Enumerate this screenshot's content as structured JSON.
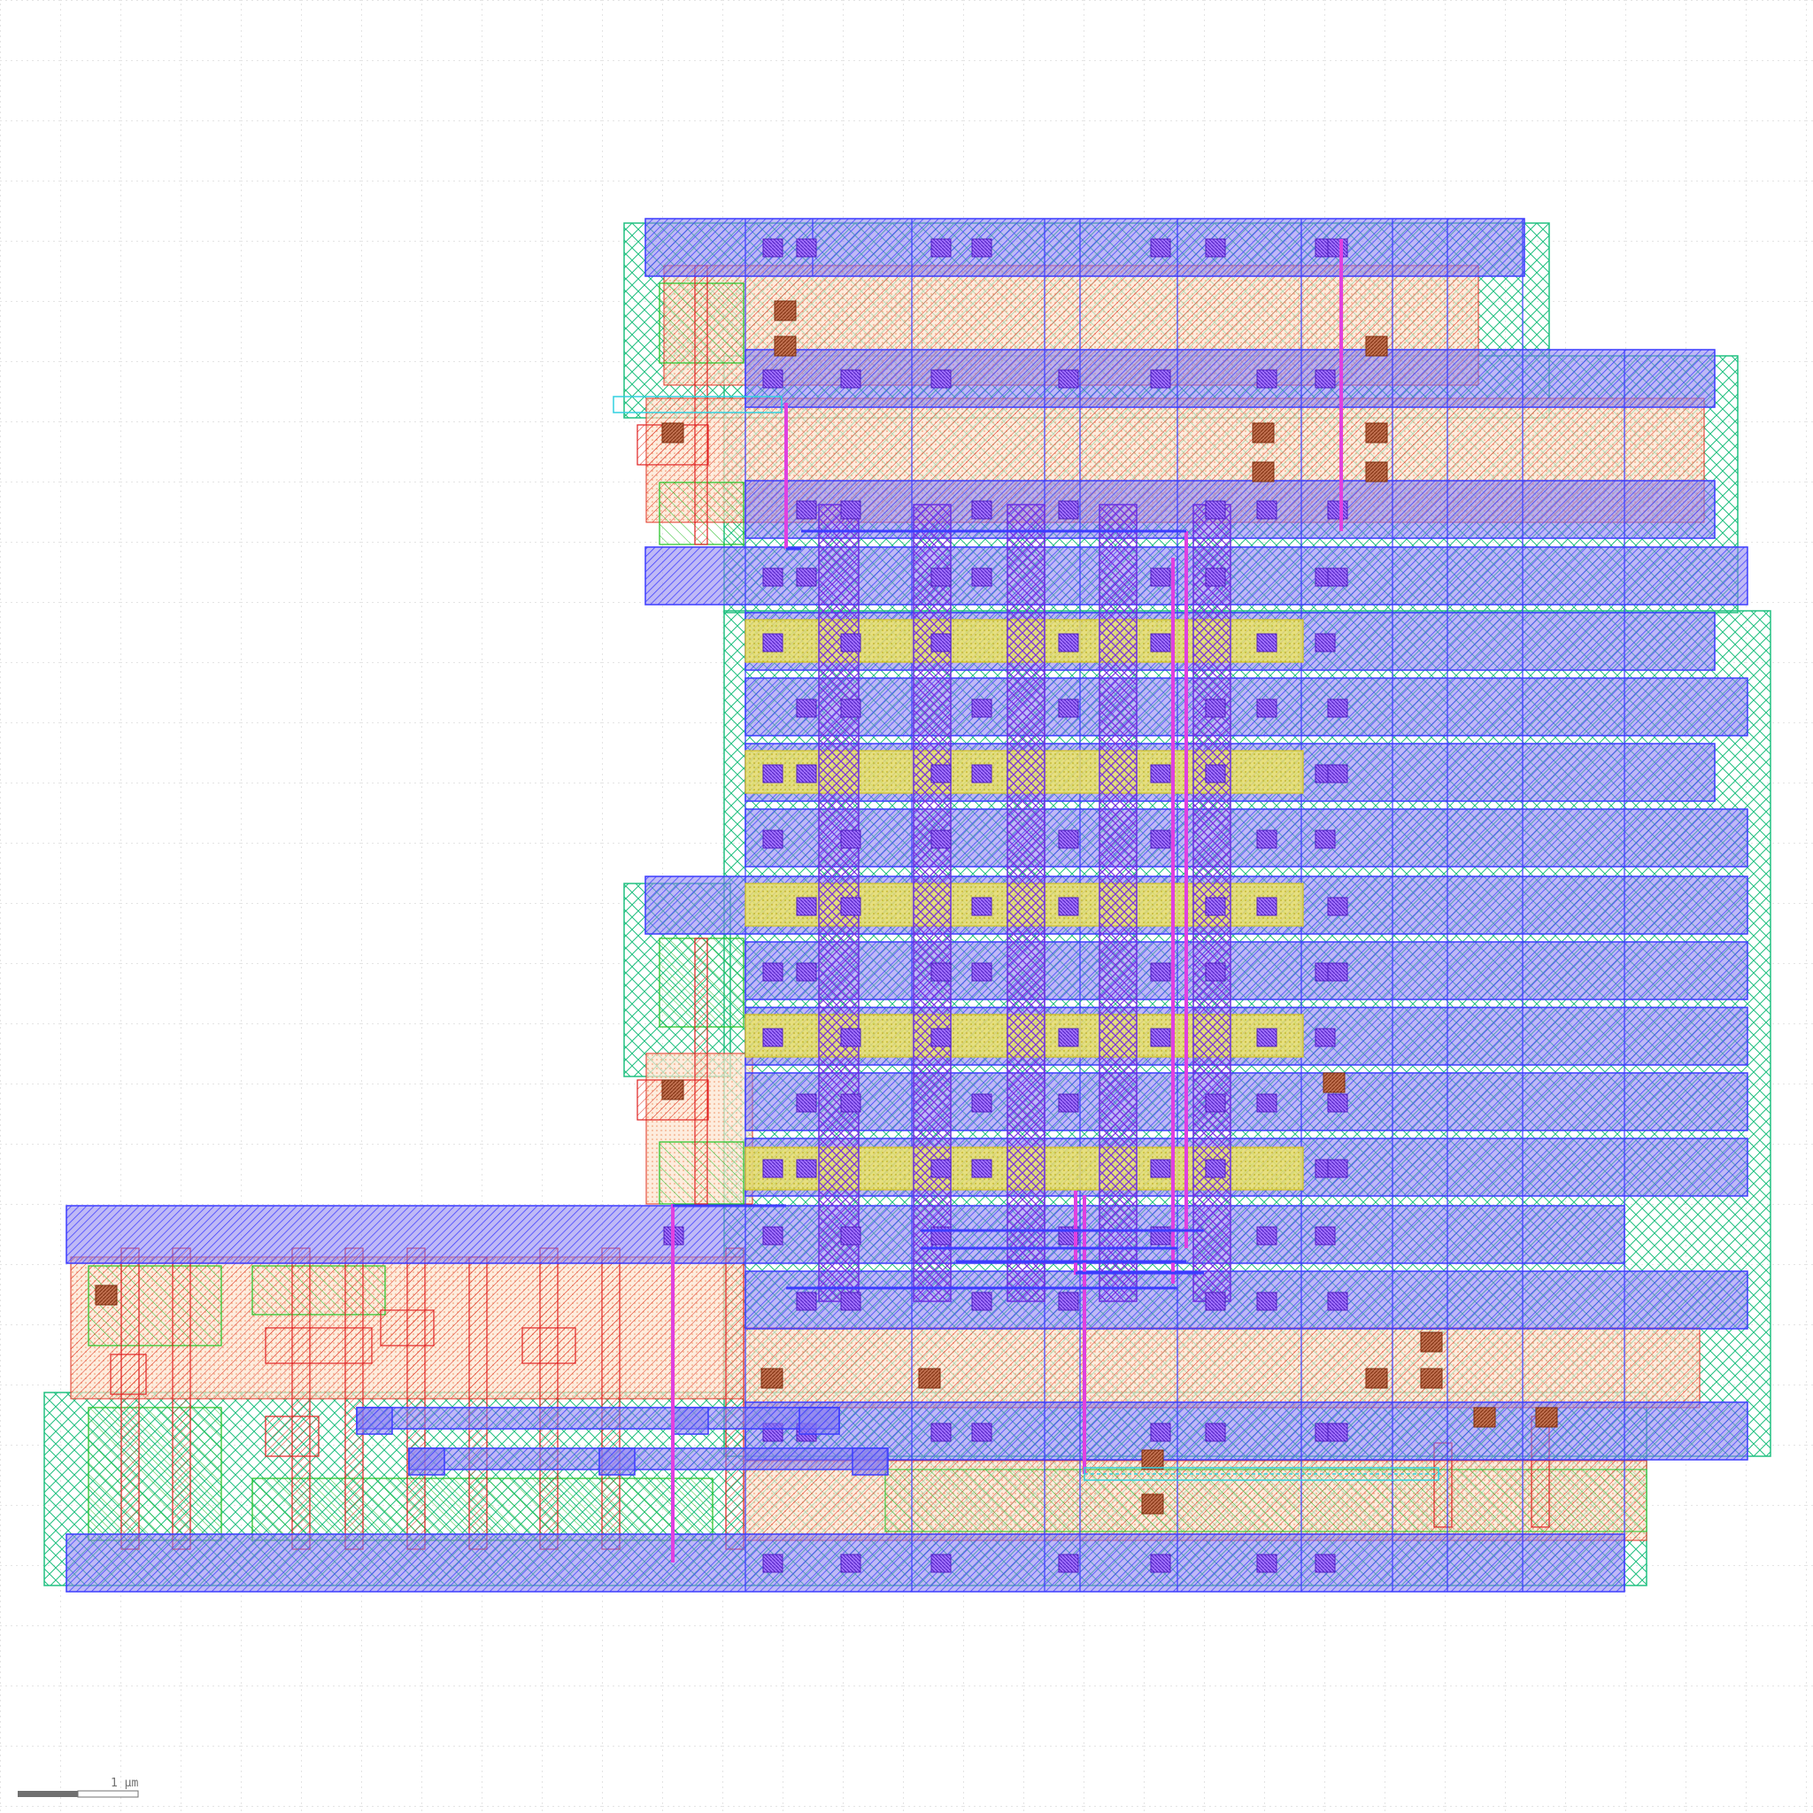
{
  "view": {
    "title": "",
    "background": "#ffffff",
    "grid_visible": true,
    "grid_color": "#c8c8c8"
  },
  "layers": {
    "metal1": {
      "color": "#3c3cff",
      "fill": "#7a6cf0",
      "name": ""
    },
    "metal2": {
      "color": "#c040ff",
      "name": ""
    },
    "poly": {
      "color": "#e02020",
      "name": ""
    },
    "diffusion": {
      "color": "#20c020",
      "name": ""
    },
    "nwell": {
      "color": "#20c080",
      "name": ""
    },
    "implant": {
      "color": "#f0b070",
      "name": ""
    },
    "via": {
      "color": "#e6e020",
      "name": ""
    },
    "contact": {
      "color": "#b85c30",
      "name": ""
    },
    "route": {
      "color": "#e040e0",
      "name": ""
    },
    "label_layer": {
      "color": "#30d0e0",
      "name": ""
    }
  },
  "scale_bar": {
    "label": "1 µm"
  }
}
